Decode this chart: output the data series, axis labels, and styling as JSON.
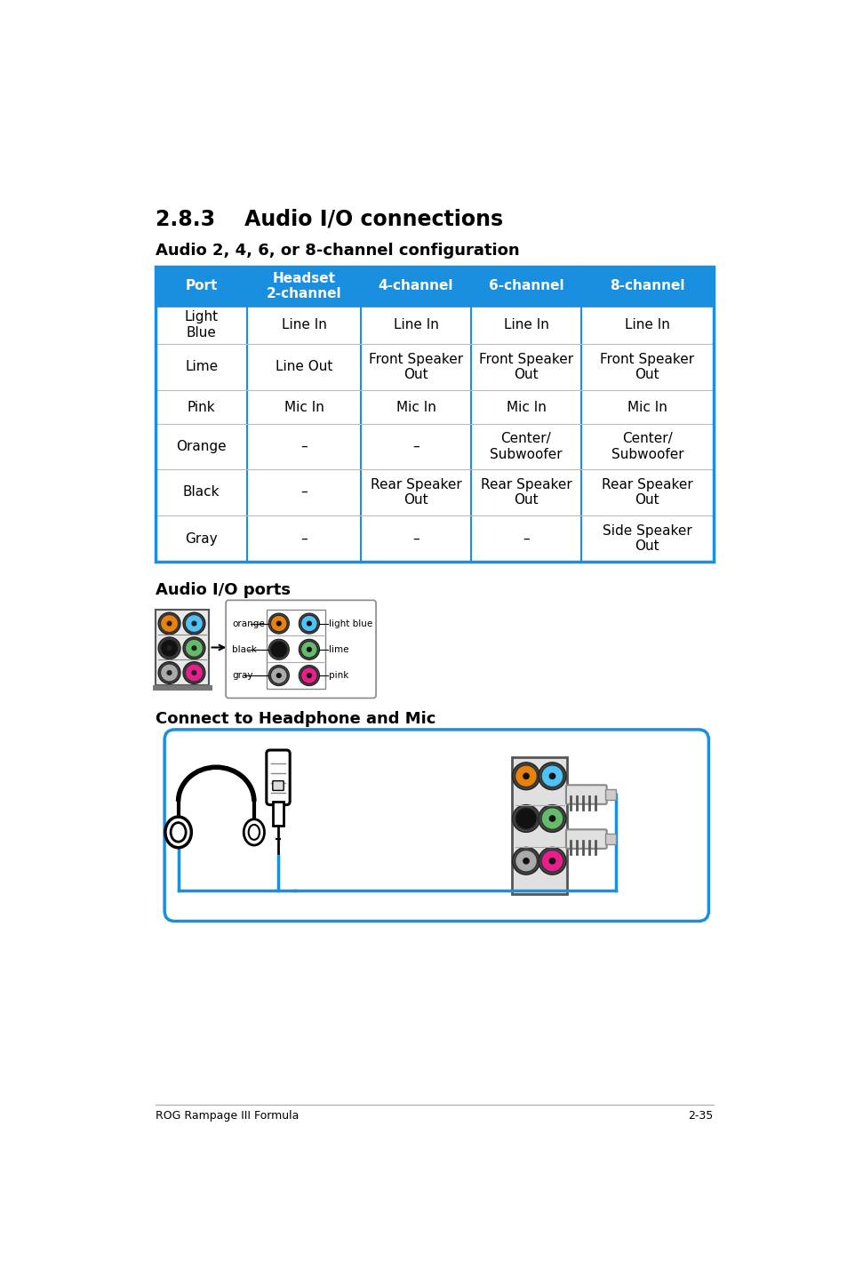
{
  "page_title": "2.8.3    Audio I/O connections",
  "section1_title": "Audio 2, 4, 6, or 8-channel configuration",
  "table_header": [
    "Port",
    "Headset\n2-channel",
    "4-channel",
    "6-channel",
    "8-channel"
  ],
  "table_rows": [
    [
      "Light\nBlue",
      "Line In",
      "Line In",
      "Line In",
      "Line In"
    ],
    [
      "Lime",
      "Line Out",
      "Front Speaker\nOut",
      "Front Speaker\nOut",
      "Front Speaker\nOut"
    ],
    [
      "Pink",
      "Mic In",
      "Mic In",
      "Mic In",
      "Mic In"
    ],
    [
      "Orange",
      "–",
      "–",
      "Center/\nSubwoofer",
      "Center/\nSubwoofer"
    ],
    [
      "Black",
      "–",
      "Rear Speaker\nOut",
      "Rear Speaker\nOut",
      "Rear Speaker\nOut"
    ],
    [
      "Gray",
      "–",
      "–",
      "–",
      "Side Speaker\nOut"
    ]
  ],
  "header_bg": "#1a8fdf",
  "header_text_color": "#ffffff",
  "table_border_color": "#1a8fdf",
  "row_line_color": "#bbbbbb",
  "section2_title": "Audio I/O ports",
  "section3_title": "Connect to Headphone and Mic",
  "footer_left": "ROG Rampage III Formula",
  "footer_right": "2-35",
  "bg_color": "#ffffff",
  "port_colors": [
    [
      "#E8820A",
      "#4FC3F7"
    ],
    [
      "#111111",
      "#66BB6A"
    ],
    [
      "#AAAAAA",
      "#E91E8C"
    ]
  ]
}
